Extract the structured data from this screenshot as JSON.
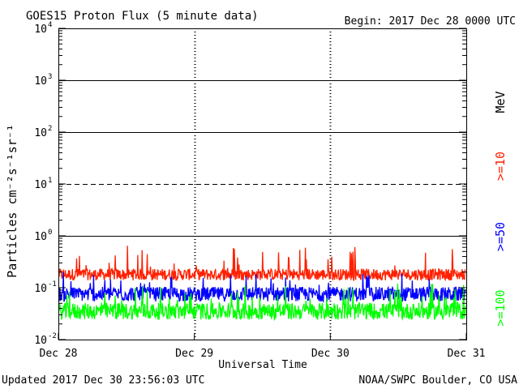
{
  "chart_data": {
    "type": "line",
    "title": "GOES15 Proton Flux (5 minute data)",
    "begin_label": "Begin: 2017 Dec 28 0000 UTC",
    "xlabel": "Universal Time",
    "ylabel": "Particles cm⁻²s⁻¹sr⁻¹",
    "y_scale": "log",
    "ylim": [
      0.01,
      10000
    ],
    "y_ticks": [
      {
        "base": "10",
        "exp": "4",
        "value": 10000
      },
      {
        "base": "10",
        "exp": "3",
        "value": 1000
      },
      {
        "base": "10",
        "exp": "2",
        "value": 100
      },
      {
        "base": "10",
        "exp": "1",
        "value": 10
      },
      {
        "base": "10",
        "exp": "0",
        "value": 1
      },
      {
        "base": "10",
        "exp": "-1",
        "value": 0.1
      },
      {
        "base": "10",
        "exp": "-2",
        "value": 0.01
      }
    ],
    "x_ticks": [
      "Dec 28",
      "Dec 29",
      "Dec 30",
      "Dec 31"
    ],
    "xlim": [
      "2017-12-28",
      "2017-12-31"
    ],
    "horizontal_reference_lines": [
      {
        "value": 1000,
        "style": "solid"
      },
      {
        "value": 100,
        "style": "solid"
      },
      {
        "value": 10,
        "style": "dashed"
      },
      {
        "value": 1,
        "style": "solid"
      }
    ],
    "unit_label": "MeV",
    "series": [
      {
        "name": ">=10",
        "color": "#ff2000",
        "baseline": 0.18,
        "range": [
          0.13,
          0.65
        ]
      },
      {
        "name": ">=50",
        "color": "#0000ff",
        "baseline": 0.075,
        "range": [
          0.05,
          0.2
        ]
      },
      {
        "name": ">=100",
        "color": "#00ff00",
        "baseline": 0.035,
        "range": [
          0.022,
          0.12
        ]
      }
    ]
  },
  "footer": {
    "updated": "Updated 2017 Dec 30 23:56:03 UTC",
    "credit": "NOAA/SWPC Boulder, CO USA"
  }
}
